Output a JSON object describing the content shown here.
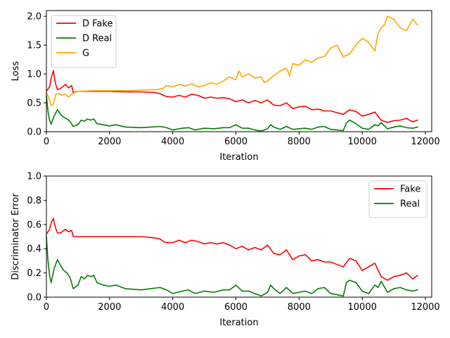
{
  "chart_data": [
    {
      "type": "line",
      "xlabel": "Iteration",
      "ylabel": "Loss",
      "xlim": [
        0,
        12200
      ],
      "ylim": [
        0,
        2.1
      ],
      "xticks": [
        0,
        2000,
        4000,
        6000,
        8000,
        10000,
        12000
      ],
      "yticks": [
        0.0,
        0.5,
        1.0,
        1.5,
        2.0
      ],
      "xtick_labels": [
        "0",
        "2000",
        "4000",
        "6000",
        "8000",
        "10000",
        "12000"
      ],
      "ytick_labels": [
        "0.0",
        "0.5",
        "1.0",
        "1.5",
        "2.0"
      ],
      "grid": false,
      "legend_position": "top-left",
      "series": [
        {
          "name": "D Fake",
          "color": "#ff0000",
          "x": [
            0,
            100,
            160,
            220,
            280,
            350,
            450,
            600,
            700,
            800,
            850,
            1000,
            1500,
            2000,
            2500,
            3000,
            3400,
            3600,
            3700,
            3800,
            4000,
            4200,
            4400,
            4600,
            4800,
            5000,
            5200,
            5400,
            5600,
            5800,
            6000,
            6200,
            6400,
            6600,
            6800,
            7000,
            7200,
            7400,
            7600,
            7800,
            8000,
            8200,
            8400,
            8600,
            8800,
            9000,
            9200,
            9400,
            9600,
            9800,
            10000,
            10200,
            10400,
            10600,
            10800,
            11000,
            11200,
            11400,
            11600,
            11750
          ],
          "values": [
            0.7,
            0.78,
            0.95,
            1.06,
            0.85,
            0.73,
            0.75,
            0.82,
            0.76,
            0.8,
            0.68,
            0.7,
            0.7,
            0.7,
            0.69,
            0.69,
            0.68,
            0.66,
            0.63,
            0.61,
            0.6,
            0.63,
            0.6,
            0.65,
            0.63,
            0.58,
            0.6,
            0.58,
            0.59,
            0.57,
            0.52,
            0.55,
            0.5,
            0.54,
            0.5,
            0.55,
            0.46,
            0.45,
            0.5,
            0.4,
            0.43,
            0.44,
            0.38,
            0.39,
            0.36,
            0.36,
            0.33,
            0.3,
            0.38,
            0.35,
            0.27,
            0.3,
            0.34,
            0.2,
            0.16,
            0.19,
            0.2,
            0.23,
            0.17,
            0.2
          ]
        },
        {
          "name": "D Real",
          "color": "#008000",
          "x": [
            0,
            50,
            100,
            150,
            250,
            350,
            450,
            550,
            650,
            750,
            850,
            1000,
            1100,
            1200,
            1300,
            1400,
            1500,
            1600,
            1800,
            2000,
            2200,
            2500,
            3000,
            3300,
            3600,
            3800,
            4000,
            4300,
            4500,
            4700,
            5000,
            5300,
            5600,
            5800,
            6000,
            6200,
            6400,
            6600,
            6800,
            7000,
            7100,
            7200,
            7400,
            7600,
            7800,
            8000,
            8200,
            8400,
            8600,
            8800,
            9000,
            9200,
            9400,
            9500,
            9600,
            9800,
            10000,
            10200,
            10400,
            10500,
            10600,
            10800,
            11000,
            11200,
            11400,
            11600,
            11750
          ],
          "values": [
            0.62,
            0.35,
            0.2,
            0.13,
            0.28,
            0.38,
            0.3,
            0.25,
            0.22,
            0.18,
            0.09,
            0.12,
            0.2,
            0.18,
            0.22,
            0.2,
            0.22,
            0.14,
            0.12,
            0.1,
            0.12,
            0.08,
            0.07,
            0.08,
            0.09,
            0.07,
            0.03,
            0.06,
            0.07,
            0.03,
            0.06,
            0.05,
            0.07,
            0.07,
            0.12,
            0.06,
            0.06,
            0.03,
            0.01,
            0.05,
            0.12,
            0.08,
            0.04,
            0.09,
            0.04,
            0.05,
            0.06,
            0.04,
            0.08,
            0.09,
            0.04,
            0.03,
            0.02,
            0.15,
            0.2,
            0.14,
            0.06,
            0.04,
            0.12,
            0.1,
            0.16,
            0.05,
            0.08,
            0.1,
            0.07,
            0.06,
            0.08
          ]
        },
        {
          "name": "G",
          "color": "#ffa500",
          "x": [
            0,
            100,
            160,
            220,
            300,
            400,
            500,
            600,
            700,
            800,
            900,
            1000,
            1500,
            2000,
            2500,
            3000,
            3500,
            3700,
            3800,
            4000,
            4200,
            4400,
            4600,
            4800,
            5000,
            5200,
            5400,
            5600,
            5800,
            6000,
            6100,
            6200,
            6400,
            6600,
            6800,
            6900,
            7000,
            7200,
            7400,
            7600,
            7700,
            7800,
            8000,
            8200,
            8400,
            8600,
            8800,
            9000,
            9200,
            9400,
            9600,
            9800,
            10000,
            10200,
            10400,
            10500,
            10600,
            10700,
            10800,
            11000,
            11200,
            11400,
            11600,
            11750
          ],
          "values": [
            0.68,
            0.55,
            0.45,
            0.48,
            0.65,
            0.66,
            0.63,
            0.65,
            0.6,
            0.65,
            0.68,
            0.7,
            0.71,
            0.71,
            0.71,
            0.72,
            0.73,
            0.75,
            0.8,
            0.78,
            0.82,
            0.79,
            0.83,
            0.78,
            0.8,
            0.85,
            0.82,
            0.88,
            0.95,
            0.9,
            1.05,
            0.95,
            1.0,
            0.93,
            0.95,
            0.85,
            0.88,
            0.97,
            1.05,
            1.1,
            0.97,
            1.18,
            1.15,
            1.25,
            1.2,
            1.28,
            1.3,
            1.45,
            1.5,
            1.3,
            1.35,
            1.5,
            1.62,
            1.55,
            1.4,
            1.7,
            1.8,
            1.85,
            2.0,
            1.95,
            1.8,
            1.75,
            1.95,
            1.85
          ]
        }
      ]
    },
    {
      "type": "line",
      "xlabel": "Iteration",
      "ylabel": "Discriminator Error",
      "xlim": [
        0,
        12200
      ],
      "ylim": [
        0,
        1.0
      ],
      "xticks": [
        0,
        2000,
        4000,
        6000,
        8000,
        10000,
        12000
      ],
      "yticks": [
        0.0,
        0.2,
        0.4,
        0.6,
        0.8,
        1.0
      ],
      "xtick_labels": [
        "0",
        "2000",
        "4000",
        "6000",
        "8000",
        "10000",
        "12000"
      ],
      "ytick_labels": [
        "0.0",
        "0.2",
        "0.4",
        "0.6",
        "0.8",
        "1.0"
      ],
      "grid": false,
      "legend_position": "top-right",
      "series": [
        {
          "name": "Fake",
          "color": "#ff0000",
          "x": [
            0,
            100,
            160,
            220,
            280,
            350,
            450,
            600,
            700,
            800,
            850,
            1000,
            1500,
            2000,
            2500,
            3000,
            3400,
            3600,
            3700,
            3800,
            4000,
            4200,
            4400,
            4600,
            4800,
            5000,
            5200,
            5400,
            5600,
            5800,
            6000,
            6200,
            6400,
            6600,
            6800,
            7000,
            7200,
            7400,
            7600,
            7800,
            8000,
            8200,
            8400,
            8600,
            8800,
            9000,
            9200,
            9400,
            9600,
            9800,
            10000,
            10200,
            10400,
            10600,
            10800,
            11000,
            11200,
            11400,
            11600,
            11750
          ],
          "values": [
            0.52,
            0.56,
            0.62,
            0.65,
            0.58,
            0.53,
            0.53,
            0.56,
            0.54,
            0.55,
            0.5,
            0.5,
            0.5,
            0.5,
            0.5,
            0.5,
            0.49,
            0.48,
            0.46,
            0.45,
            0.45,
            0.47,
            0.45,
            0.47,
            0.46,
            0.44,
            0.45,
            0.44,
            0.45,
            0.43,
            0.4,
            0.42,
            0.39,
            0.41,
            0.39,
            0.43,
            0.36,
            0.35,
            0.39,
            0.31,
            0.34,
            0.35,
            0.3,
            0.31,
            0.29,
            0.29,
            0.27,
            0.25,
            0.32,
            0.3,
            0.22,
            0.25,
            0.28,
            0.17,
            0.14,
            0.17,
            0.18,
            0.2,
            0.15,
            0.18
          ]
        },
        {
          "name": "Real",
          "color": "#008000",
          "x": [
            0,
            50,
            100,
            150,
            250,
            350,
            450,
            550,
            650,
            750,
            850,
            1000,
            1100,
            1200,
            1300,
            1400,
            1500,
            1600,
            1800,
            2000,
            2200,
            2500,
            3000,
            3300,
            3600,
            3800,
            4000,
            4300,
            4500,
            4700,
            5000,
            5300,
            5600,
            5800,
            6000,
            6200,
            6400,
            6600,
            6800,
            7000,
            7100,
            7200,
            7400,
            7600,
            7800,
            8000,
            8200,
            8400,
            8600,
            8800,
            9000,
            9200,
            9400,
            9500,
            9600,
            9800,
            10000,
            10200,
            10400,
            10500,
            10600,
            10800,
            11000,
            11200,
            11400,
            11600,
            11750
          ],
          "values": [
            0.5,
            0.3,
            0.18,
            0.12,
            0.24,
            0.31,
            0.26,
            0.22,
            0.2,
            0.16,
            0.07,
            0.1,
            0.17,
            0.15,
            0.18,
            0.17,
            0.18,
            0.12,
            0.1,
            0.09,
            0.1,
            0.07,
            0.06,
            0.07,
            0.08,
            0.06,
            0.03,
            0.05,
            0.06,
            0.03,
            0.05,
            0.04,
            0.06,
            0.06,
            0.1,
            0.05,
            0.05,
            0.03,
            0.01,
            0.04,
            0.1,
            0.07,
            0.03,
            0.08,
            0.03,
            0.04,
            0.05,
            0.03,
            0.07,
            0.08,
            0.03,
            0.02,
            0.01,
            0.12,
            0.14,
            0.12,
            0.05,
            0.03,
            0.1,
            0.08,
            0.13,
            0.04,
            0.07,
            0.08,
            0.06,
            0.05,
            0.06
          ]
        }
      ]
    }
  ]
}
